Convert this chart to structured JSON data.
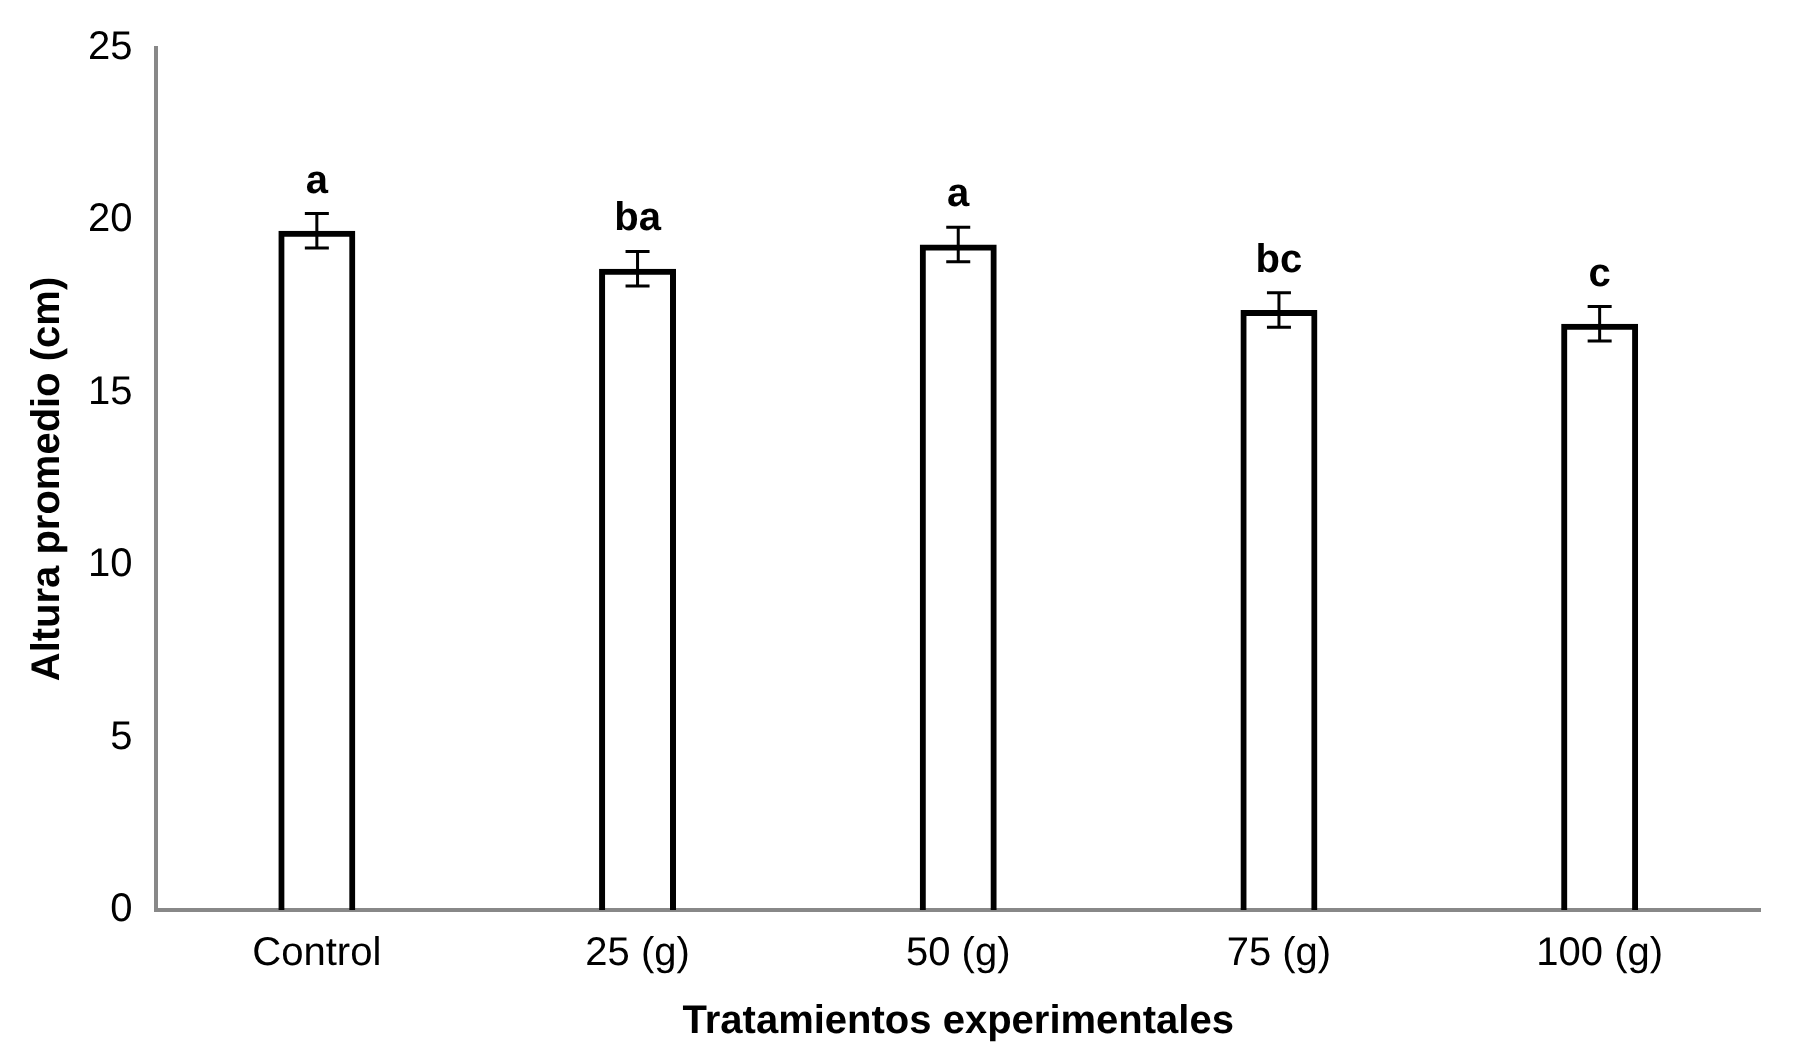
{
  "chart_data": {
    "type": "bar",
    "xlabel": "Tratamientos experimentales",
    "ylabel": "Altura promedio (cm)",
    "categories": [
      "Control",
      "25 (g)",
      "50 (g)",
      "75 (g)",
      "100 (g)"
    ],
    "values": [
      19.7,
      18.6,
      19.3,
      17.4,
      17.0
    ],
    "errors": [
      0.5,
      0.5,
      0.5,
      0.5,
      0.5
    ],
    "color": "#000000",
    "ylim": [
      0,
      25
    ],
    "yticks": [
      0,
      5,
      10,
      15,
      20,
      25
    ],
    "grid": false,
    "legend": false,
    "annotations": [
      {
        "text": "a",
        "x": "Control",
        "y": 19.7
      },
      {
        "text": "ba",
        "x": "25 (g)",
        "y": 18.6
      },
      {
        "text": "a",
        "x": "50 (g)",
        "y": 19.3
      },
      {
        "text": "bc",
        "x": "75 (g)",
        "y": 17.4
      },
      {
        "text": "c",
        "x": "100 (g)",
        "y": 17.0
      }
    ]
  }
}
